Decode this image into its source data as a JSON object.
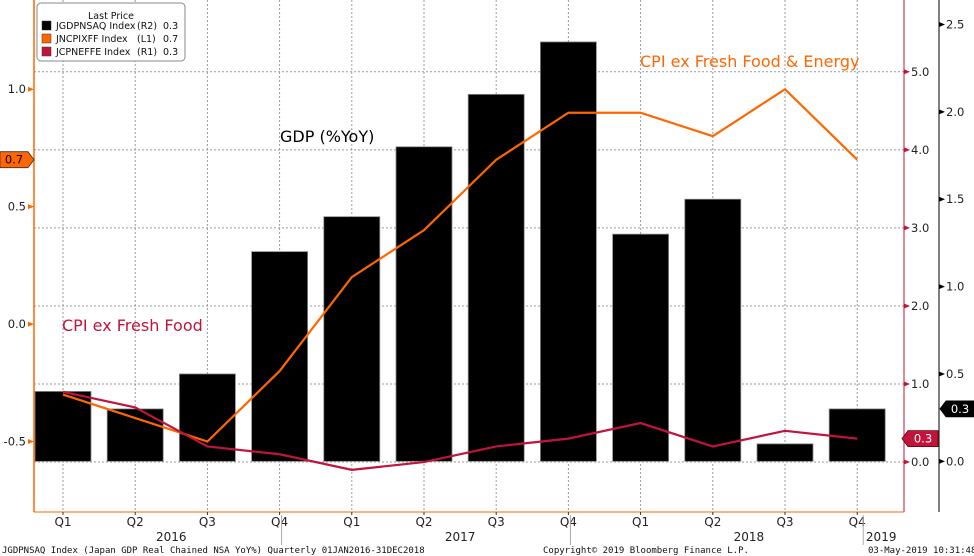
{
  "chart_data": {
    "type": "bar+line",
    "categories": [
      "Q1",
      "Q2",
      "Q3",
      "Q4",
      "Q1",
      "Q2",
      "Q3",
      "Q4",
      "Q1",
      "Q2",
      "Q3",
      "Q4"
    ],
    "years": [
      {
        "label": "2016",
        "span": [
          0,
          3
        ]
      },
      {
        "label": "2017",
        "span": [
          4,
          7
        ]
      },
      {
        "label": "2018",
        "span": [
          8,
          11
        ]
      },
      {
        "label": "2019",
        "span": [
          12,
          12
        ]
      }
    ],
    "series": [
      {
        "name": "JGDPNSAQ Index",
        "axis": "R2",
        "type": "bar",
        "color": "#000000",
        "values": [
          0.4,
          0.3,
          0.5,
          1.2,
          1.4,
          1.8,
          2.1,
          2.4,
          1.3,
          1.5,
          0.1,
          0.3
        ],
        "last": "0.3"
      },
      {
        "name": "JNCPIXFF Index",
        "axis": "L1",
        "type": "line",
        "color": "#ff6600",
        "values": [
          -0.3,
          -0.4,
          -0.5,
          -0.2,
          0.2,
          0.4,
          0.7,
          0.9,
          0.9,
          0.8,
          1.0,
          0.7
        ],
        "last": "0.7"
      },
      {
        "name": "JCPNEFFE Index",
        "axis": "R1",
        "type": "line",
        "color": "#c0143c",
        "values": [
          0.9,
          0.7,
          0.2,
          0.1,
          -0.1,
          0.0,
          0.2,
          0.3,
          0.5,
          0.2,
          0.4,
          0.3
        ],
        "last": "0.3"
      }
    ],
    "axes": {
      "L1": {
        "range": [
          -0.8,
          1.38
        ],
        "ticks": [
          "1.0",
          "0.5",
          "0.0",
          "-0.5"
        ],
        "tick_values": [
          1.0,
          0.5,
          0.0,
          -0.5
        ],
        "color": "#ff6600"
      },
      "R1": {
        "range": [
          -0.64,
          5.92
        ],
        "ticks": [
          "5.0",
          "4.0",
          "3.0",
          "2.0",
          "1.0",
          "0.0"
        ],
        "tick_values": [
          5,
          4,
          3,
          2,
          1,
          0
        ],
        "color": "#c0143c"
      },
      "R2": {
        "range": [
          -0.29,
          2.64
        ],
        "ticks": [
          "2.5",
          "2.0",
          "1.5",
          "1.0",
          "0.5",
          "0.0"
        ],
        "tick_values": [
          2.5,
          2.0,
          1.5,
          1.0,
          0.5,
          0.0
        ],
        "color": "#000000"
      }
    },
    "legend": {
      "title": "Last Price",
      "placement": "top-left",
      "entries": [
        "JGDPNSAQ Index",
        "JNCPIXFF Index",
        "JCPNEFFE Index"
      ],
      "axes_labels": [
        "(R2)",
        "(L1)",
        "(R1)"
      ],
      "values": [
        "0.3",
        "0.7",
        "0.3"
      ]
    },
    "annotations": {
      "gdp": "GDP (%YoY)",
      "core_core": "CPI ex Fresh Food & Energy",
      "core": "CPI ex Fresh Food"
    },
    "grid": true
  },
  "footer": {
    "left": "JGDPNSAQ Index (Japan GDP Real Chained NSA YoY%)  Quarterly 01JAN2016-31DEC2018",
    "center": "Copyright© 2019 Bloomberg Finance L.P.",
    "right": "03-May-2019 10:31:48"
  }
}
